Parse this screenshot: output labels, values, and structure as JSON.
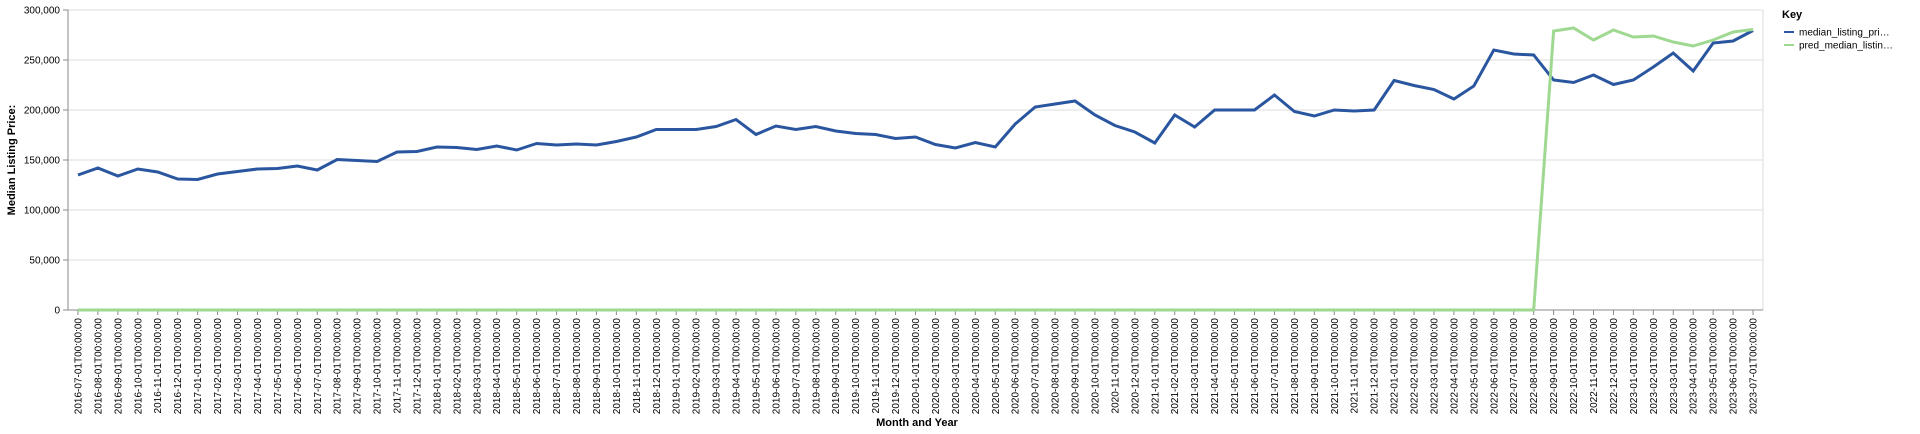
{
  "chart_data": {
    "type": "line",
    "x_label": "Month and Year",
    "y_label": "Median Listing Price:",
    "legend_title": "Key",
    "legend_labels": [
      "median_listing_pri…",
      "pred_median_listin…"
    ],
    "categories": [
      "2016-07-01T00:00:00",
      "2016-08-01T00:00:00",
      "2016-09-01T00:00:00",
      "2016-10-01T00:00:00",
      "2016-11-01T00:00:00",
      "2016-12-01T00:00:00",
      "2017-01-01T00:00:00",
      "2017-02-01T00:00:00",
      "2017-03-01T00:00:00",
      "2017-04-01T00:00:00",
      "2017-05-01T00:00:00",
      "2017-06-01T00:00:00",
      "2017-07-01T00:00:00",
      "2017-08-01T00:00:00",
      "2017-09-01T00:00:00",
      "2017-10-01T00:00:00",
      "2017-11-01T00:00:00",
      "2017-12-01T00:00:00",
      "2018-01-01T00:00:00",
      "2018-02-01T00:00:00",
      "2018-03-01T00:00:00",
      "2018-04-01T00:00:00",
      "2018-05-01T00:00:00",
      "2018-06-01T00:00:00",
      "2018-07-01T00:00:00",
      "2018-08-01T00:00:00",
      "2018-09-01T00:00:00",
      "2018-10-01T00:00:00",
      "2018-11-01T00:00:00",
      "2018-12-01T00:00:00",
      "2019-01-01T00:00:00",
      "2019-02-01T00:00:00",
      "2019-03-01T00:00:00",
      "2019-04-01T00:00:00",
      "2019-05-01T00:00:00",
      "2019-06-01T00:00:00",
      "2019-07-01T00:00:00",
      "2019-08-01T00:00:00",
      "2019-09-01T00:00:00",
      "2019-10-01T00:00:00",
      "2019-11-01T00:00:00",
      "2019-12-01T00:00:00",
      "2020-01-01T00:00:00",
      "2020-02-01T00:00:00",
      "2020-03-01T00:00:00",
      "2020-04-01T00:00:00",
      "2020-05-01T00:00:00",
      "2020-06-01T00:00:00",
      "2020-07-01T00:00:00",
      "2020-08-01T00:00:00",
      "2020-09-01T00:00:00",
      "2020-10-01T00:00:00",
      "2020-11-01T00:00:00",
      "2020-12-01T00:00:00",
      "2021-01-01T00:00:00",
      "2021-02-01T00:00:00",
      "2021-03-01T00:00:00",
      "2021-04-01T00:00:00",
      "2021-05-01T00:00:00",
      "2021-06-01T00:00:00",
      "2021-07-01T00:00:00",
      "2021-08-01T00:00:00",
      "2021-09-01T00:00:00",
      "2021-10-01T00:00:00",
      "2021-11-01T00:00:00",
      "2021-12-01T00:00:00",
      "2022-01-01T00:00:00",
      "2022-02-01T00:00:00",
      "2022-03-01T00:00:00",
      "2022-04-01T00:00:00",
      "2022-05-01T00:00:00",
      "2022-06-01T00:00:00",
      "2022-07-01T00:00:00",
      "2022-08-01T00:00:00",
      "2022-09-01T00:00:00",
      "2022-10-01T00:00:00",
      "2022-11-01T00:00:00",
      "2022-12-01T00:00:00",
      "2023-01-01T00:00:00",
      "2023-02-01T00:00:00",
      "2023-03-01T00:00:00",
      "2023-04-01T00:00:00",
      "2023-05-01T00:00:00",
      "2023-06-01T00:00:00",
      "2023-07-01T00:00:00"
    ],
    "series": [
      {
        "name": "median_listing_price",
        "color": "#2a56a0",
        "values": [
          135000,
          142000,
          134000,
          141000,
          138000,
          131000,
          130500,
          136000,
          138500,
          141000,
          141500,
          144000,
          140000,
          150500,
          149500,
          148500,
          158000,
          158500,
          163000,
          162500,
          160500,
          164000,
          160000,
          166500,
          165000,
          166000,
          165000,
          168500,
          173000,
          180500,
          180500,
          180500,
          183500,
          190500,
          175500,
          184000,
          180500,
          183500,
          179000,
          176500,
          175500,
          171500,
          173000,
          165500,
          162000,
          167500,
          163000,
          186000,
          203000,
          206000,
          209000,
          195000,
          184500,
          178000,
          167000,
          195000,
          183000,
          200000,
          200000,
          200000,
          215000,
          198500,
          194000,
          200000,
          199000,
          200000,
          229500,
          224500,
          220500,
          211000,
          224000,
          260000,
          256000,
          255000,
          230000,
          227500,
          235000,
          225500,
          230000,
          243000,
          257000,
          239000,
          267000,
          269000,
          279500
        ]
      },
      {
        "name": "pred_median_listing_price",
        "color": "#9fd890",
        "values": [
          0,
          0,
          0,
          0,
          0,
          0,
          0,
          0,
          0,
          0,
          0,
          0,
          0,
          0,
          0,
          0,
          0,
          0,
          0,
          0,
          0,
          0,
          0,
          0,
          0,
          0,
          0,
          0,
          0,
          0,
          0,
          0,
          0,
          0,
          0,
          0,
          0,
          0,
          0,
          0,
          0,
          0,
          0,
          0,
          0,
          0,
          0,
          0,
          0,
          0,
          0,
          0,
          0,
          0,
          0,
          0,
          0,
          0,
          0,
          0,
          0,
          0,
          0,
          0,
          0,
          0,
          0,
          0,
          0,
          0,
          0,
          0,
          0,
          0,
          279000,
          282000,
          270000,
          280000,
          273000,
          274000,
          268000,
          264000,
          270000,
          278000,
          280500
        ]
      }
    ],
    "ylim": [
      0,
      300000
    ],
    "yticks": [
      0,
      {
        "value": 50000,
        "label": "50,000"
      },
      {
        "value": 100000,
        "label": "100,000"
      },
      {
        "value": 150000,
        "label": "150,000"
      },
      {
        "value": 200000,
        "label": "200,000"
      },
      {
        "value": 250000,
        "label": "250,000"
      },
      {
        "value": 300000,
        "label": "300,000"
      }
    ],
    "grid": true
  }
}
